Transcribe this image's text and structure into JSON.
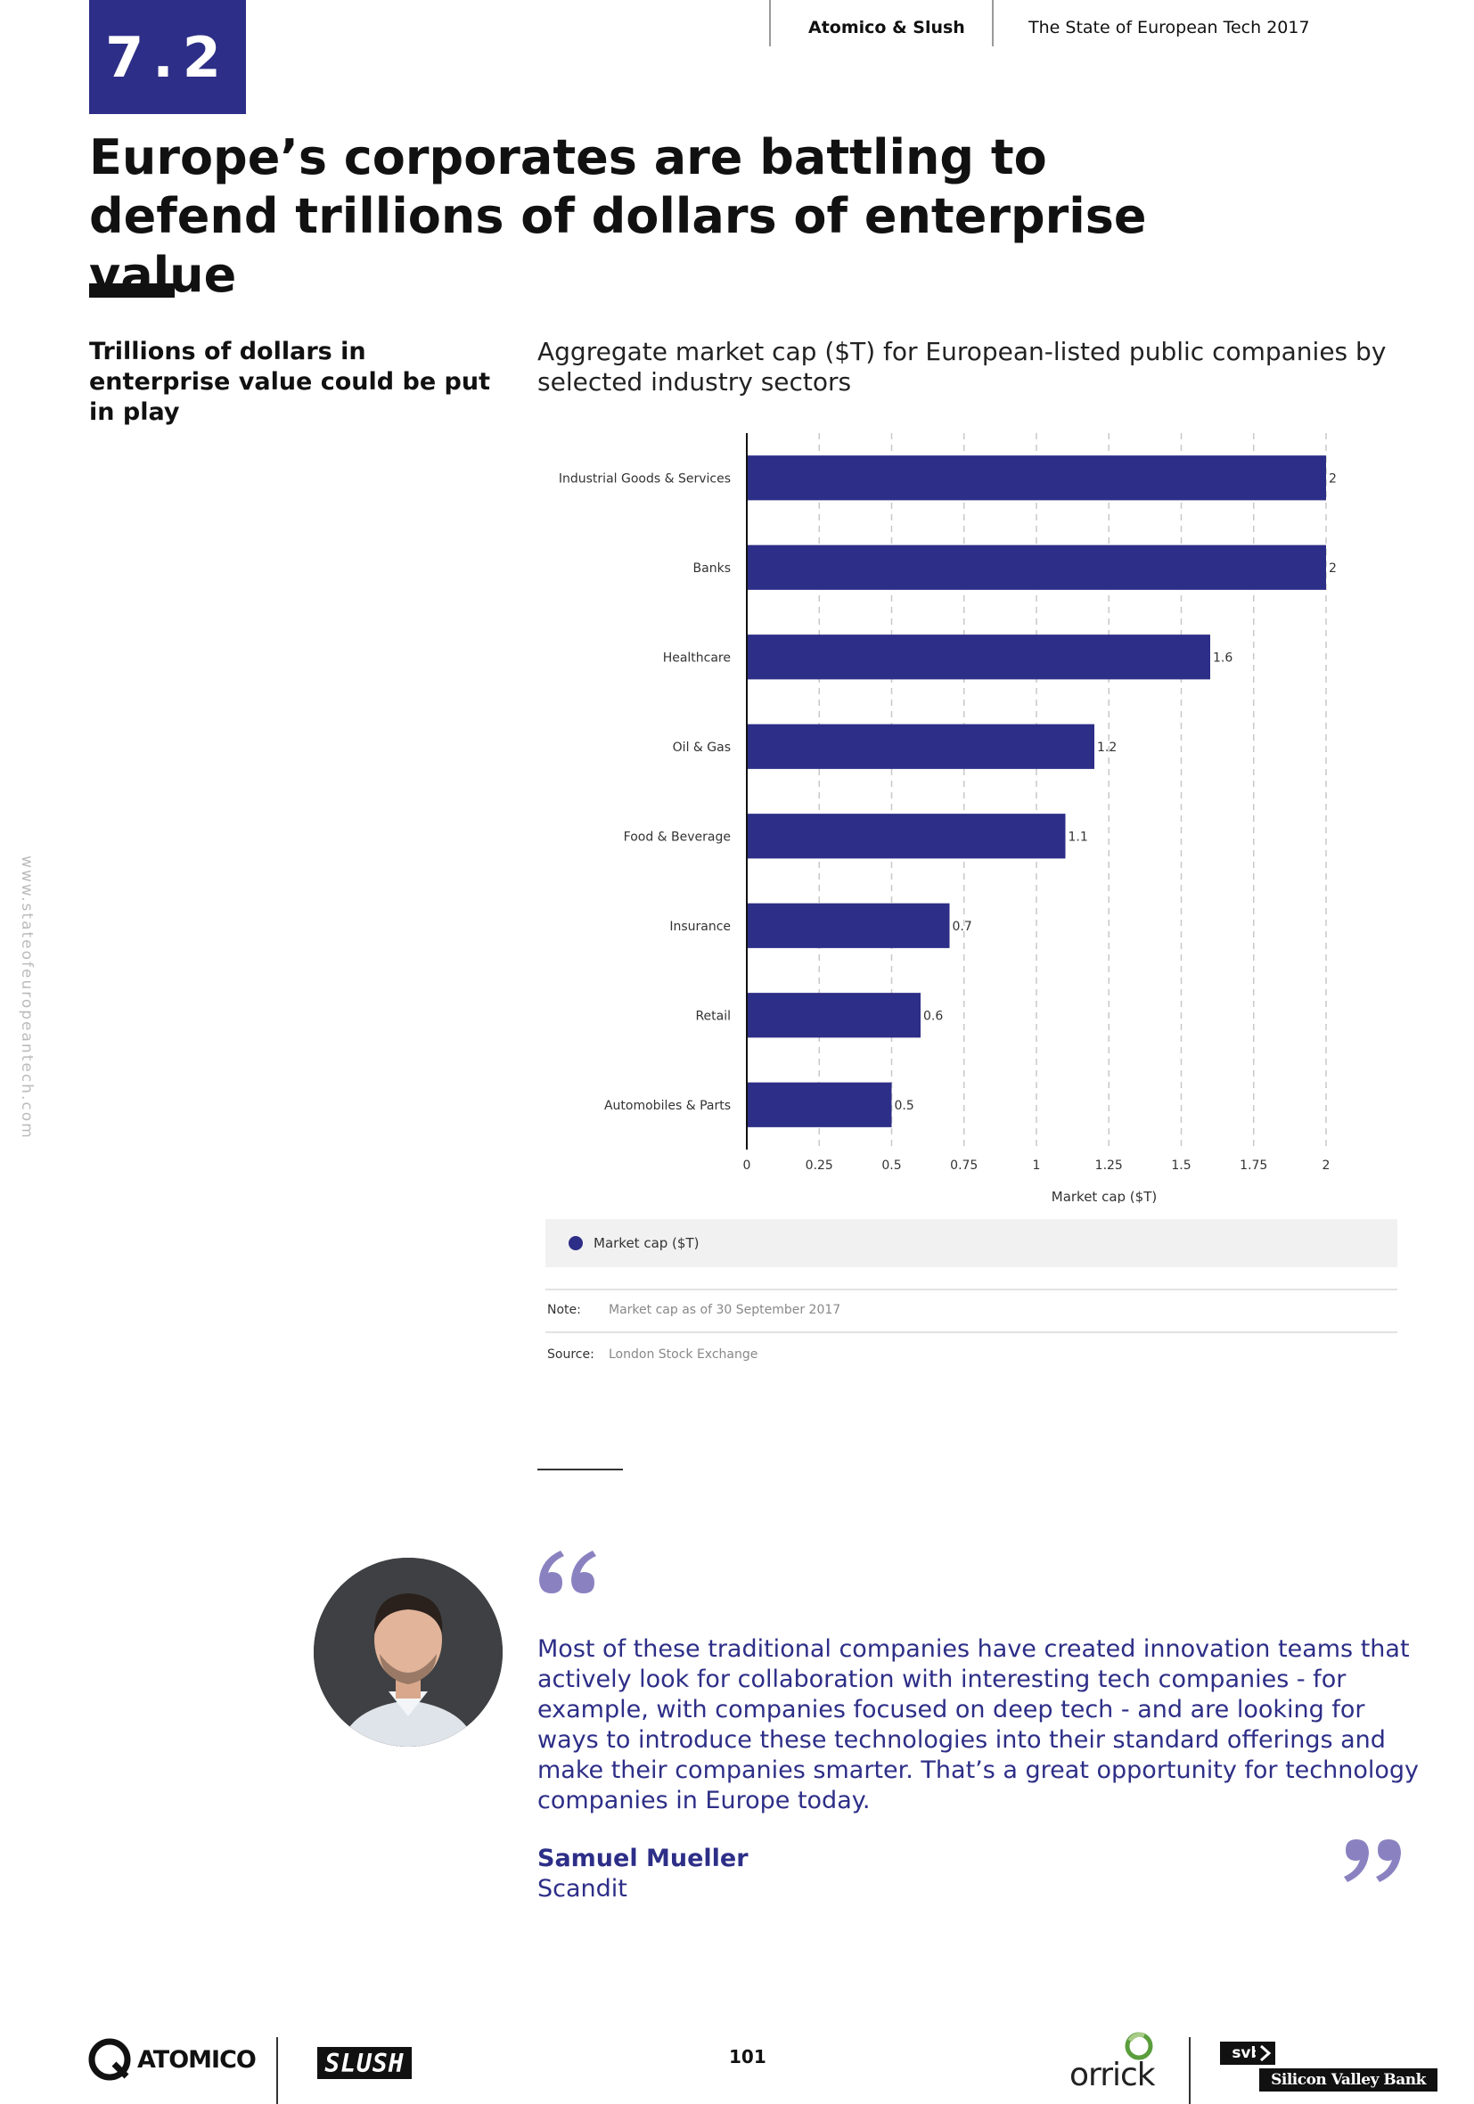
{
  "header": {
    "section_number": "7.2",
    "brand": "Atomico & Slush",
    "report_title": "The State of European Tech 2017"
  },
  "page_title": "Europe’s corporates are battling to defend trillions of dollars of enterprise value",
  "side_heading": "Trillions of dollars in enterprise value could be put in play",
  "side_url": "www.stateofeuropeantech.com",
  "chart_data": {
    "type": "bar",
    "orientation": "horizontal",
    "title": "Aggregate market cap ($T) for European-listed public companies by selected industry sectors",
    "categories": [
      "Industrial Goods & Services",
      "Banks",
      "Healthcare",
      "Oil & Gas",
      "Food & Beverage",
      "Insurance",
      "Retail",
      "Automobiles & Parts"
    ],
    "series": [
      {
        "name": "Market cap ($T)",
        "values": [
          2,
          2,
          1.6,
          1.2,
          1.1,
          0.7,
          0.6,
          0.5
        ]
      }
    ],
    "data_labels": [
      "2",
      "2",
      "1.6",
      "1.2",
      "1.1",
      "0.7",
      "0.6",
      "0.5"
    ],
    "xlabel": "Market cap ($T)",
    "ylabel": "",
    "xlim": [
      0,
      2
    ],
    "x_ticks": [
      0,
      0.25,
      0.5,
      0.75,
      1,
      1.25,
      1.5,
      1.75,
      2
    ],
    "x_tick_labels": [
      "0",
      "0.25",
      "0.5",
      "0.75",
      "1",
      "1.25",
      "1.5",
      "1.75",
      "2"
    ],
    "grid": "vertical dashed",
    "legend": {
      "position": "bottom",
      "label": "Market cap ($T)"
    },
    "bar_color": "#2d2e87"
  },
  "notes": {
    "note_label": "Note:",
    "note_text": "Market cap as of 30 September 2017",
    "source_label": "Source:",
    "source_text": "London Stock Exchange"
  },
  "quote": {
    "text": "Most of these traditional companies have created innovation teams that actively look for collaboration with interesting tech companies - for example, with companies focused on deep tech - and are looking for ways to introduce these technologies into their standard offerings and make their companies smarter. That’s a great opportunity for technology companies in Europe today.",
    "author": "Samuel Mueller",
    "company": "Scandit"
  },
  "footer": {
    "page_number": "101",
    "logos": {
      "atomico": "ATOMICO",
      "slush": "SLUSH",
      "orrick": "orrick",
      "svb_short": "svb",
      "svb_full": "Silicon Valley Bank"
    }
  },
  "colors": {
    "accent": "#2d2e87",
    "quote_mark": "#8a82c0",
    "text": "#111111",
    "legend_bg": "#f1f1f1"
  }
}
